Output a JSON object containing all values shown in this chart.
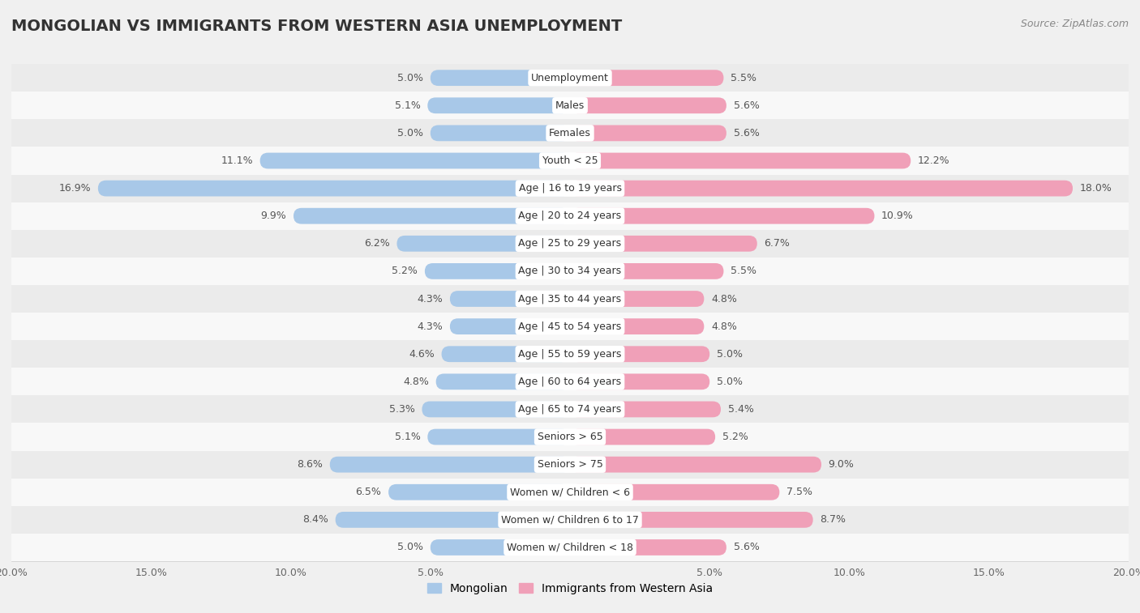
{
  "title": "MONGOLIAN VS IMMIGRANTS FROM WESTERN ASIA UNEMPLOYMENT",
  "source": "Source: ZipAtlas.com",
  "categories": [
    "Unemployment",
    "Males",
    "Females",
    "Youth < 25",
    "Age | 16 to 19 years",
    "Age | 20 to 24 years",
    "Age | 25 to 29 years",
    "Age | 30 to 34 years",
    "Age | 35 to 44 years",
    "Age | 45 to 54 years",
    "Age | 55 to 59 years",
    "Age | 60 to 64 years",
    "Age | 65 to 74 years",
    "Seniors > 65",
    "Seniors > 75",
    "Women w/ Children < 6",
    "Women w/ Children 6 to 17",
    "Women w/ Children < 18"
  ],
  "mongolian": [
    5.0,
    5.1,
    5.0,
    11.1,
    16.9,
    9.9,
    6.2,
    5.2,
    4.3,
    4.3,
    4.6,
    4.8,
    5.3,
    5.1,
    8.6,
    6.5,
    8.4,
    5.0
  ],
  "western_asia": [
    5.5,
    5.6,
    5.6,
    12.2,
    18.0,
    10.9,
    6.7,
    5.5,
    4.8,
    4.8,
    5.0,
    5.0,
    5.4,
    5.2,
    9.0,
    7.5,
    8.7,
    5.6
  ],
  "mongolian_color": "#a8c8e8",
  "western_asia_color": "#f0a0b8",
  "row_color_odd": "#ebebeb",
  "row_color_even": "#f8f8f8",
  "background_color": "#f0f0f0",
  "xlim": 20.0,
  "bar_height": 0.58,
  "legend_mongolian": "Mongolian",
  "legend_western_asia": "Immigrants from Western Asia",
  "title_fontsize": 14,
  "label_fontsize": 9,
  "value_fontsize": 9,
  "source_fontsize": 9
}
